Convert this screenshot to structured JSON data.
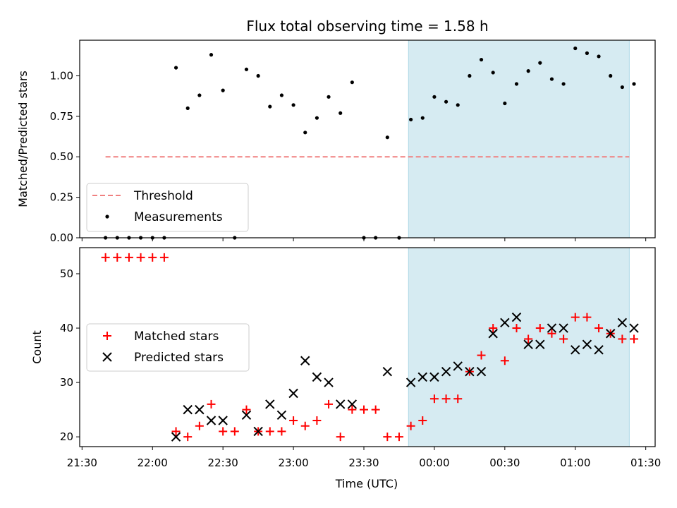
{
  "chart_data": {
    "title": "Flux total observing time = 1.58 h",
    "xlabel": "Time (UTC)",
    "x_unit": "minutes after 21:30 UTC",
    "xlim": [
      -1,
      244
    ],
    "xticks": [
      0,
      30,
      60,
      90,
      120,
      150,
      180,
      210,
      240
    ],
    "xtick_labels": [
      "21:30",
      "22:00",
      "22:30",
      "23:00",
      "23:30",
      "00:00",
      "00:30",
      "01:00",
      "01:30"
    ],
    "shaded_region": {
      "x": [
        139,
        233
      ],
      "color": "#add8e6"
    },
    "times": [
      10,
      15,
      20,
      25,
      30,
      35,
      40,
      45,
      50,
      55,
      60,
      65,
      70,
      75,
      80,
      85,
      90,
      95,
      100,
      105,
      110,
      115,
      120,
      125,
      130,
      135,
      140,
      145,
      150,
      155,
      160,
      165,
      170,
      175,
      180,
      185,
      190,
      195,
      200,
      205,
      210,
      215,
      220,
      225,
      230,
      235
    ],
    "panels": [
      {
        "type": "scatter",
        "ylabel": "Matched/Predicted stars",
        "ylim": [
          0,
          1.22
        ],
        "yticks": [
          0,
          0.25,
          0.5,
          0.75,
          1.0
        ],
        "ytick_labels": [
          "0.00",
          "0.25",
          "0.50",
          "0.75",
          "1.00"
        ],
        "legend": {
          "placement": "lower-left",
          "entries": [
            "Threshold",
            "Measurements"
          ]
        },
        "threshold": {
          "name": "Threshold",
          "value": 0.5,
          "x": [
            10,
            233
          ],
          "color": "#f08080"
        },
        "series": [
          {
            "name": "Measurements",
            "marker": "dot",
            "color": "#000000",
            "values": [
              0,
              0,
              0,
              0,
              0,
              0,
              1.05,
              0.8,
              0.88,
              1.13,
              0.91,
              0,
              1.04,
              1.0,
              0.81,
              0.88,
              0.82,
              0.65,
              0.74,
              0.87,
              0.77,
              0.96,
              0,
              0,
              0.62,
              0,
              0.73,
              0.74,
              0.87,
              0.84,
              0.82,
              1.0,
              1.1,
              1.02,
              0.83,
              0.95,
              1.03,
              1.08,
              0.98,
              0.95,
              1.17,
              1.14,
              1.12,
              1.0,
              0.93,
              0.95
            ]
          }
        ]
      },
      {
        "type": "scatter",
        "ylabel": "Count",
        "ylim": [
          18.2,
          54.8
        ],
        "yticks": [
          20,
          30,
          40,
          50
        ],
        "ytick_labels": [
          "20",
          "30",
          "40",
          "50"
        ],
        "legend": {
          "placement": "center-left",
          "entries": [
            "Matched stars",
            "Predicted stars"
          ]
        },
        "series": [
          {
            "name": "Matched stars",
            "marker": "plus",
            "color": "#ff0000",
            "values": [
              53,
              53,
              53,
              53,
              53,
              53,
              21,
              20,
              22,
              26,
              21,
              21,
              25,
              21,
              21,
              21,
              23,
              22,
              23,
              26,
              20,
              25,
              25,
              25,
              20,
              20,
              22,
              23,
              27,
              27,
              27,
              32,
              35,
              40,
              34,
              40,
              38,
              40,
              39,
              38,
              42,
              42,
              40,
              39,
              38,
              38
            ]
          },
          {
            "name": "Predicted stars",
            "marker": "cross",
            "color": "#000000",
            "values": [
              null,
              null,
              null,
              null,
              null,
              null,
              20,
              25,
              25,
              23,
              23,
              null,
              24,
              21,
              26,
              24,
              28,
              34,
              31,
              30,
              26,
              26,
              null,
              null,
              32,
              null,
              30,
              31,
              31,
              32,
              33,
              32,
              32,
              39,
              41,
              42,
              37,
              37,
              40,
              40,
              36,
              37,
              36,
              39,
              41,
              40
            ]
          }
        ]
      }
    ]
  }
}
